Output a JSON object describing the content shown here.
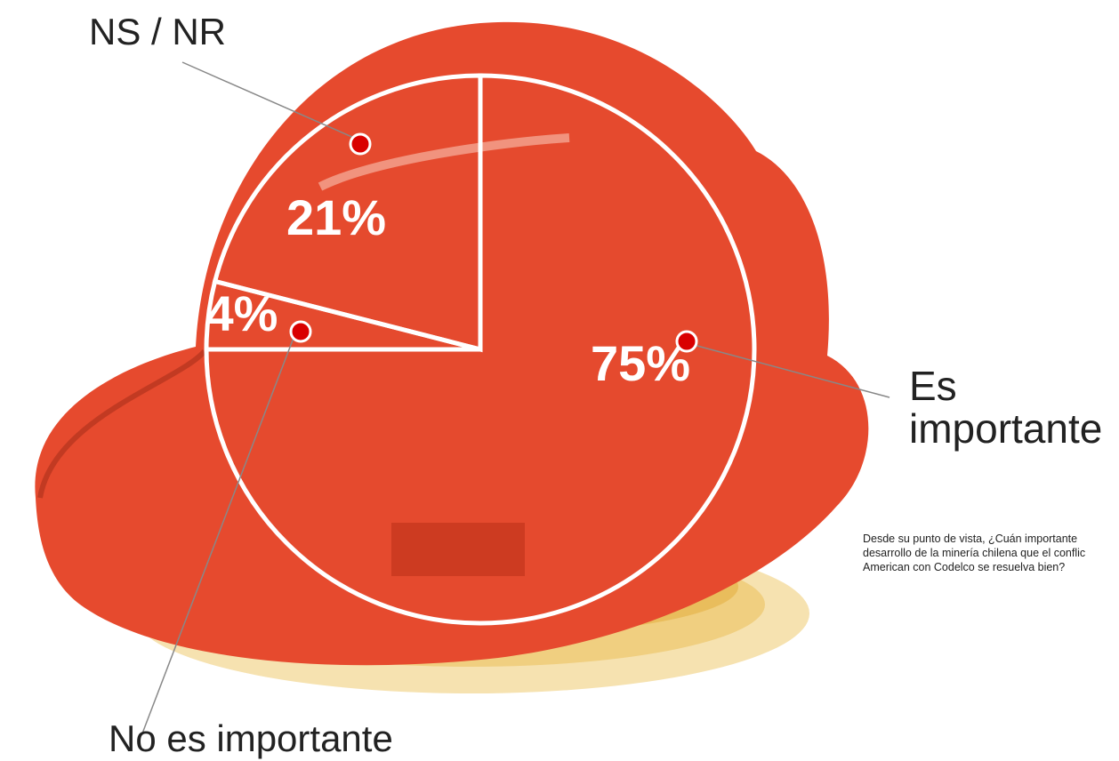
{
  "chart_data": {
    "type": "pie",
    "categories": [
      "Es importante",
      "No es importante",
      "NS / NR"
    ],
    "values": [
      75,
      4,
      21
    ],
    "value_labels": [
      "75%",
      "4%",
      "21%"
    ],
    "color": "#e64a2e",
    "note_lines": [
      "Desde su punto de vista, ¿Cuán importante",
      "desarrollo de la minería chilena que el conflic",
      "American con Codelco se resuelva bien?"
    ]
  }
}
